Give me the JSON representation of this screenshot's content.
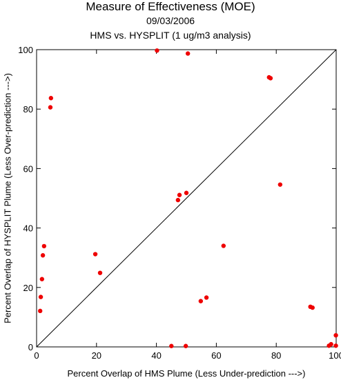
{
  "chart_data": {
    "type": "scatter",
    "title": "Measure of Effectiveness (MOE)",
    "subtitle": "09/03/2006",
    "subtitle2": "HMS vs. HYSPLIT  (1 ug/m3 analysis)",
    "xlabel": "Percent Overlap of HMS Plume (Less Under-prediction --->)",
    "ylabel": "Percent Overlap of HYSPLIT Plume (Less Over-prediction --->)",
    "xlim": [
      0,
      100
    ],
    "ylim": [
      0,
      100
    ],
    "xticks": [
      "0",
      "20",
      "40",
      "60",
      "80",
      "100"
    ],
    "yticks": [
      "0",
      "20",
      "40",
      "60",
      "80",
      "100"
    ],
    "diagonal_line": true,
    "marker_color": "#ee0000",
    "points": [
      {
        "x": 40.2,
        "y": 99.7
      },
      {
        "x": 50.5,
        "y": 98.7
      },
      {
        "x": 77.6,
        "y": 90.7
      },
      {
        "x": 78.1,
        "y": 90.4
      },
      {
        "x": 4.8,
        "y": 83.7
      },
      {
        "x": 4.6,
        "y": 80.6
      },
      {
        "x": 81.3,
        "y": 54.6
      },
      {
        "x": 50.0,
        "y": 51.8
      },
      {
        "x": 47.7,
        "y": 51.1
      },
      {
        "x": 47.2,
        "y": 49.4
      },
      {
        "x": 2.5,
        "y": 33.9
      },
      {
        "x": 2.1,
        "y": 30.8
      },
      {
        "x": 62.4,
        "y": 34.0
      },
      {
        "x": 19.6,
        "y": 31.2
      },
      {
        "x": 21.2,
        "y": 24.9
      },
      {
        "x": 1.8,
        "y": 22.8
      },
      {
        "x": 1.4,
        "y": 16.8
      },
      {
        "x": 56.7,
        "y": 16.6
      },
      {
        "x": 54.8,
        "y": 15.4
      },
      {
        "x": 91.4,
        "y": 13.5
      },
      {
        "x": 92.1,
        "y": 13.2
      },
      {
        "x": 1.2,
        "y": 12.1
      },
      {
        "x": 45.0,
        "y": 0.3
      },
      {
        "x": 49.8,
        "y": 0.3
      },
      {
        "x": 97.6,
        "y": 0.4
      },
      {
        "x": 98.3,
        "y": 0.9
      },
      {
        "x": 99.9,
        "y": 3.9
      },
      {
        "x": 99.9,
        "y": 0.4
      }
    ]
  }
}
